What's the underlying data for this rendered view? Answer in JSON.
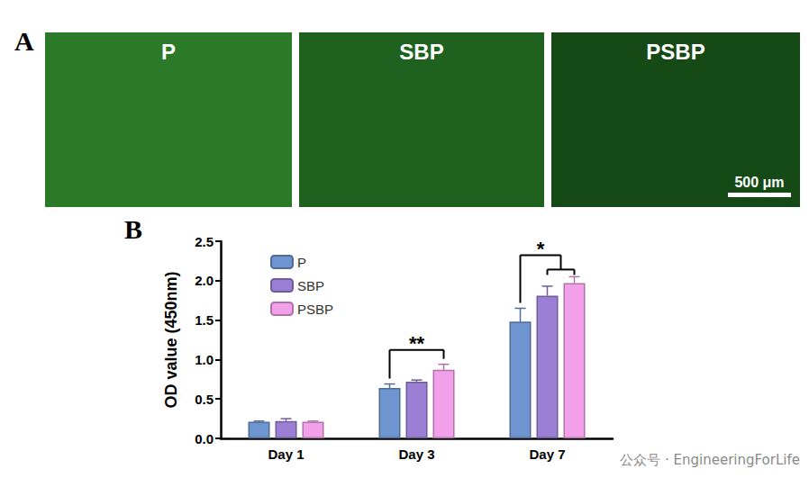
{
  "panel_a": {
    "letter": "A",
    "images": [
      "P",
      "SBP",
      "PSBP"
    ],
    "scale_bar": "500 μm"
  },
  "panel_b": {
    "letter": "B"
  },
  "chart_data": {
    "type": "bar",
    "categories": [
      "Day 1",
      "Day 3",
      "Day 7"
    ],
    "ylabel": "OD value (450nm)",
    "ylim": [
      0,
      2.5
    ],
    "yticks": [
      {
        "value": 0,
        "label": "0.0"
      },
      0.5,
      {
        "value": 1,
        "label": "1.0"
      },
      1.5,
      {
        "value": 2,
        "label": "2.0"
      },
      2.5
    ],
    "grid": false,
    "legend": "upper left",
    "series": [
      {
        "name": "P",
        "color": "#6e95d0",
        "values": [
          0.21,
          0.64,
          1.48
        ],
        "errors": [
          0.01,
          0.05,
          0.17
        ]
      },
      {
        "name": "SBP",
        "color": "#9b7fd4",
        "values": [
          0.22,
          0.72,
          1.81
        ],
        "errors": [
          0.03,
          0.02,
          0.12
        ]
      },
      {
        "name": "PSBP",
        "color": "#f2a0ea",
        "values": [
          0.21,
          0.87,
          1.97
        ],
        "errors": [
          0.01,
          0.07,
          0.08
        ]
      }
    ],
    "annotations": [
      {
        "text": "**",
        "category": "Day 3",
        "from": "P",
        "to": [
          "PSBP"
        ]
      },
      {
        "text": "*",
        "category": "Day 7",
        "from": "P",
        "to": [
          "SBP",
          "PSBP"
        ]
      }
    ]
  },
  "watermark": "公众号 · EngineeringForLife"
}
